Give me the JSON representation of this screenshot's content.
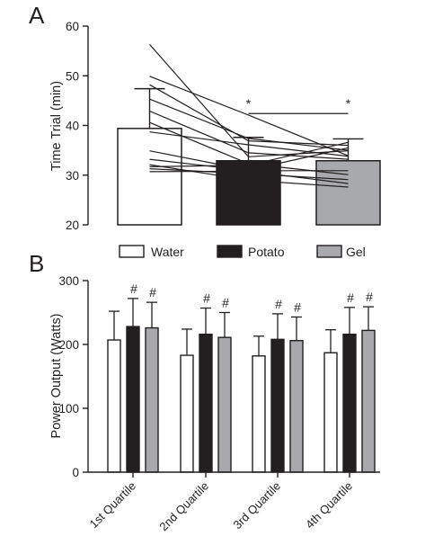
{
  "chart_data": [
    {
      "panel": "A",
      "type": "bar",
      "ylabel": "Time Trial (min)",
      "ylim": [
        20,
        60
      ],
      "yticks": [
        "20",
        "30",
        "40",
        "50",
        "60"
      ],
      "categories": [
        "Water",
        "Potato",
        "Gel"
      ],
      "colors": [
        "#ffffff",
        "#231f20",
        "#a7a9ac"
      ],
      "values": [
        39.4,
        32.9,
        32.9
      ],
      "error_upper": [
        47.4,
        37.6,
        37.3
      ],
      "significance": {
        "marker": "*",
        "between": [
          "Potato",
          "Gel"
        ],
        "bracket_y": 42.4,
        "marker_y": 44.6
      },
      "individual_lines": [
        [
          56.3,
          33.7,
          34.9
        ],
        [
          49.9,
          42.1,
          33.9
        ],
        [
          48.2,
          36.9,
          36.0
        ],
        [
          45.3,
          37.4,
          35.0
        ],
        [
          42.9,
          34.5,
          33.2
        ],
        [
          40.6,
          32.3,
          30.1
        ],
        [
          38.7,
          36.1,
          33.8
        ],
        [
          34.9,
          31.0,
          35.5
        ],
        [
          33.2,
          30.9,
          30.9
        ],
        [
          32.1,
          29.0,
          27.6
        ],
        [
          31.7,
          32.0,
          36.6
        ],
        [
          31.3,
          30.3,
          29.1
        ],
        [
          30.7,
          30.8,
          28.3
        ]
      ],
      "legend": {
        "position": "bottom",
        "items": [
          "Water",
          "Potato",
          "Gel"
        ]
      }
    },
    {
      "panel": "B",
      "type": "bar",
      "ylabel": "Power Output (Watts)",
      "ylim": [
        0,
        300
      ],
      "yticks": [
        "0",
        "100",
        "200",
        "300"
      ],
      "categories": [
        "1st Quartile",
        "2nd Quartile",
        "3rd Quartile",
        "4th Quartile"
      ],
      "series": [
        {
          "name": "Water",
          "color": "#ffffff",
          "values": [
            207,
            183,
            182,
            187
          ],
          "error_upper": [
            252,
            224,
            213,
            223
          ],
          "markers": [
            "",
            "",
            "",
            ""
          ]
        },
        {
          "name": "Potato",
          "color": "#231f20",
          "values": [
            228,
            216,
            208,
            216
          ],
          "error_upper": [
            272,
            257,
            248,
            258
          ],
          "markers": [
            "#",
            "#",
            "#",
            "#"
          ]
        },
        {
          "name": "Gel",
          "color": "#a7a9ac",
          "values": [
            226,
            211,
            206,
            222
          ],
          "error_upper": [
            266,
            250,
            243,
            259
          ],
          "markers": [
            "#",
            "#",
            "#",
            "#"
          ]
        }
      ]
    }
  ]
}
